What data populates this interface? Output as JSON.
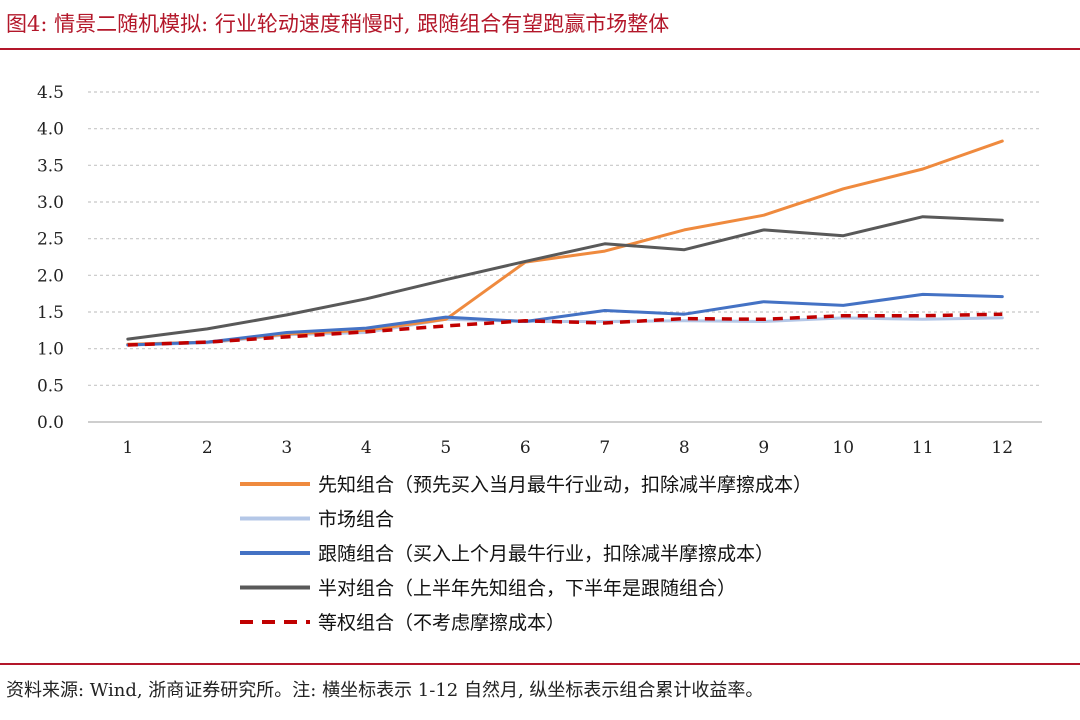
{
  "figure_title": "图4: 情景二随机模拟: 行业轮动速度稍慢时, 跟随组合有望跑赢市场整体",
  "source_note": "资料来源: Wind, 浙商证券研究所。注: 横坐标表示 1-12 自然月, 纵坐标表示组合累计收益率。",
  "chart_data": {
    "type": "line",
    "title": "",
    "xlabel": "",
    "ylabel": "",
    "x": [
      1,
      2,
      3,
      4,
      5,
      6,
      7,
      8,
      9,
      10,
      11,
      12
    ],
    "xtick_labels": [
      "1",
      "2",
      "3",
      "4",
      "5",
      "6",
      "7",
      "8",
      "9",
      "10",
      "11",
      "12"
    ],
    "ylim": [
      0,
      4.5
    ],
    "yticks": [
      0.0,
      0.5,
      1.0,
      1.5,
      2.0,
      2.5,
      3.0,
      3.5,
      4.0,
      4.5
    ],
    "ytick_labels": [
      "0.0",
      "0.5",
      "1.0",
      "1.5",
      "2.0",
      "2.5",
      "3.0",
      "3.5",
      "4.0",
      "4.5"
    ],
    "grid": "horizontal dashed",
    "legend_position": "bottom",
    "series": [
      {
        "name": "先知组合（预先买入当月最牛行业动，扣除减半摩擦成本）",
        "color": "#ef8a3e",
        "dash": "solid",
        "values": [
          1.06,
          1.09,
          1.2,
          1.25,
          1.4,
          2.18,
          2.33,
          2.62,
          2.82,
          3.18,
          3.45,
          3.83
        ]
      },
      {
        "name": "市场组合",
        "color": "#b4c7e7",
        "dash": "solid",
        "values": [
          1.05,
          1.08,
          1.19,
          1.22,
          1.4,
          1.37,
          1.37,
          1.38,
          1.37,
          1.42,
          1.4,
          1.42
        ]
      },
      {
        "name": "跟随组合（买入上个月最牛行业，扣除减半摩擦成本）",
        "color": "#4472c4",
        "dash": "solid",
        "values": [
          1.05,
          1.09,
          1.22,
          1.28,
          1.43,
          1.37,
          1.52,
          1.47,
          1.64,
          1.59,
          1.74,
          1.71
        ]
      },
      {
        "name": "半对组合（上半年先知组合，下半年是跟随组合）",
        "color": "#595959",
        "dash": "solid",
        "values": [
          1.13,
          1.27,
          1.46,
          1.68,
          1.94,
          2.19,
          2.43,
          2.35,
          2.62,
          2.54,
          2.8,
          2.75
        ]
      },
      {
        "name": "等权组合（不考虑摩擦成本）",
        "color": "#c00000",
        "dash": "dashed",
        "values": [
          1.05,
          1.09,
          1.16,
          1.23,
          1.31,
          1.38,
          1.35,
          1.41,
          1.4,
          1.45,
          1.45,
          1.47
        ]
      }
    ]
  }
}
